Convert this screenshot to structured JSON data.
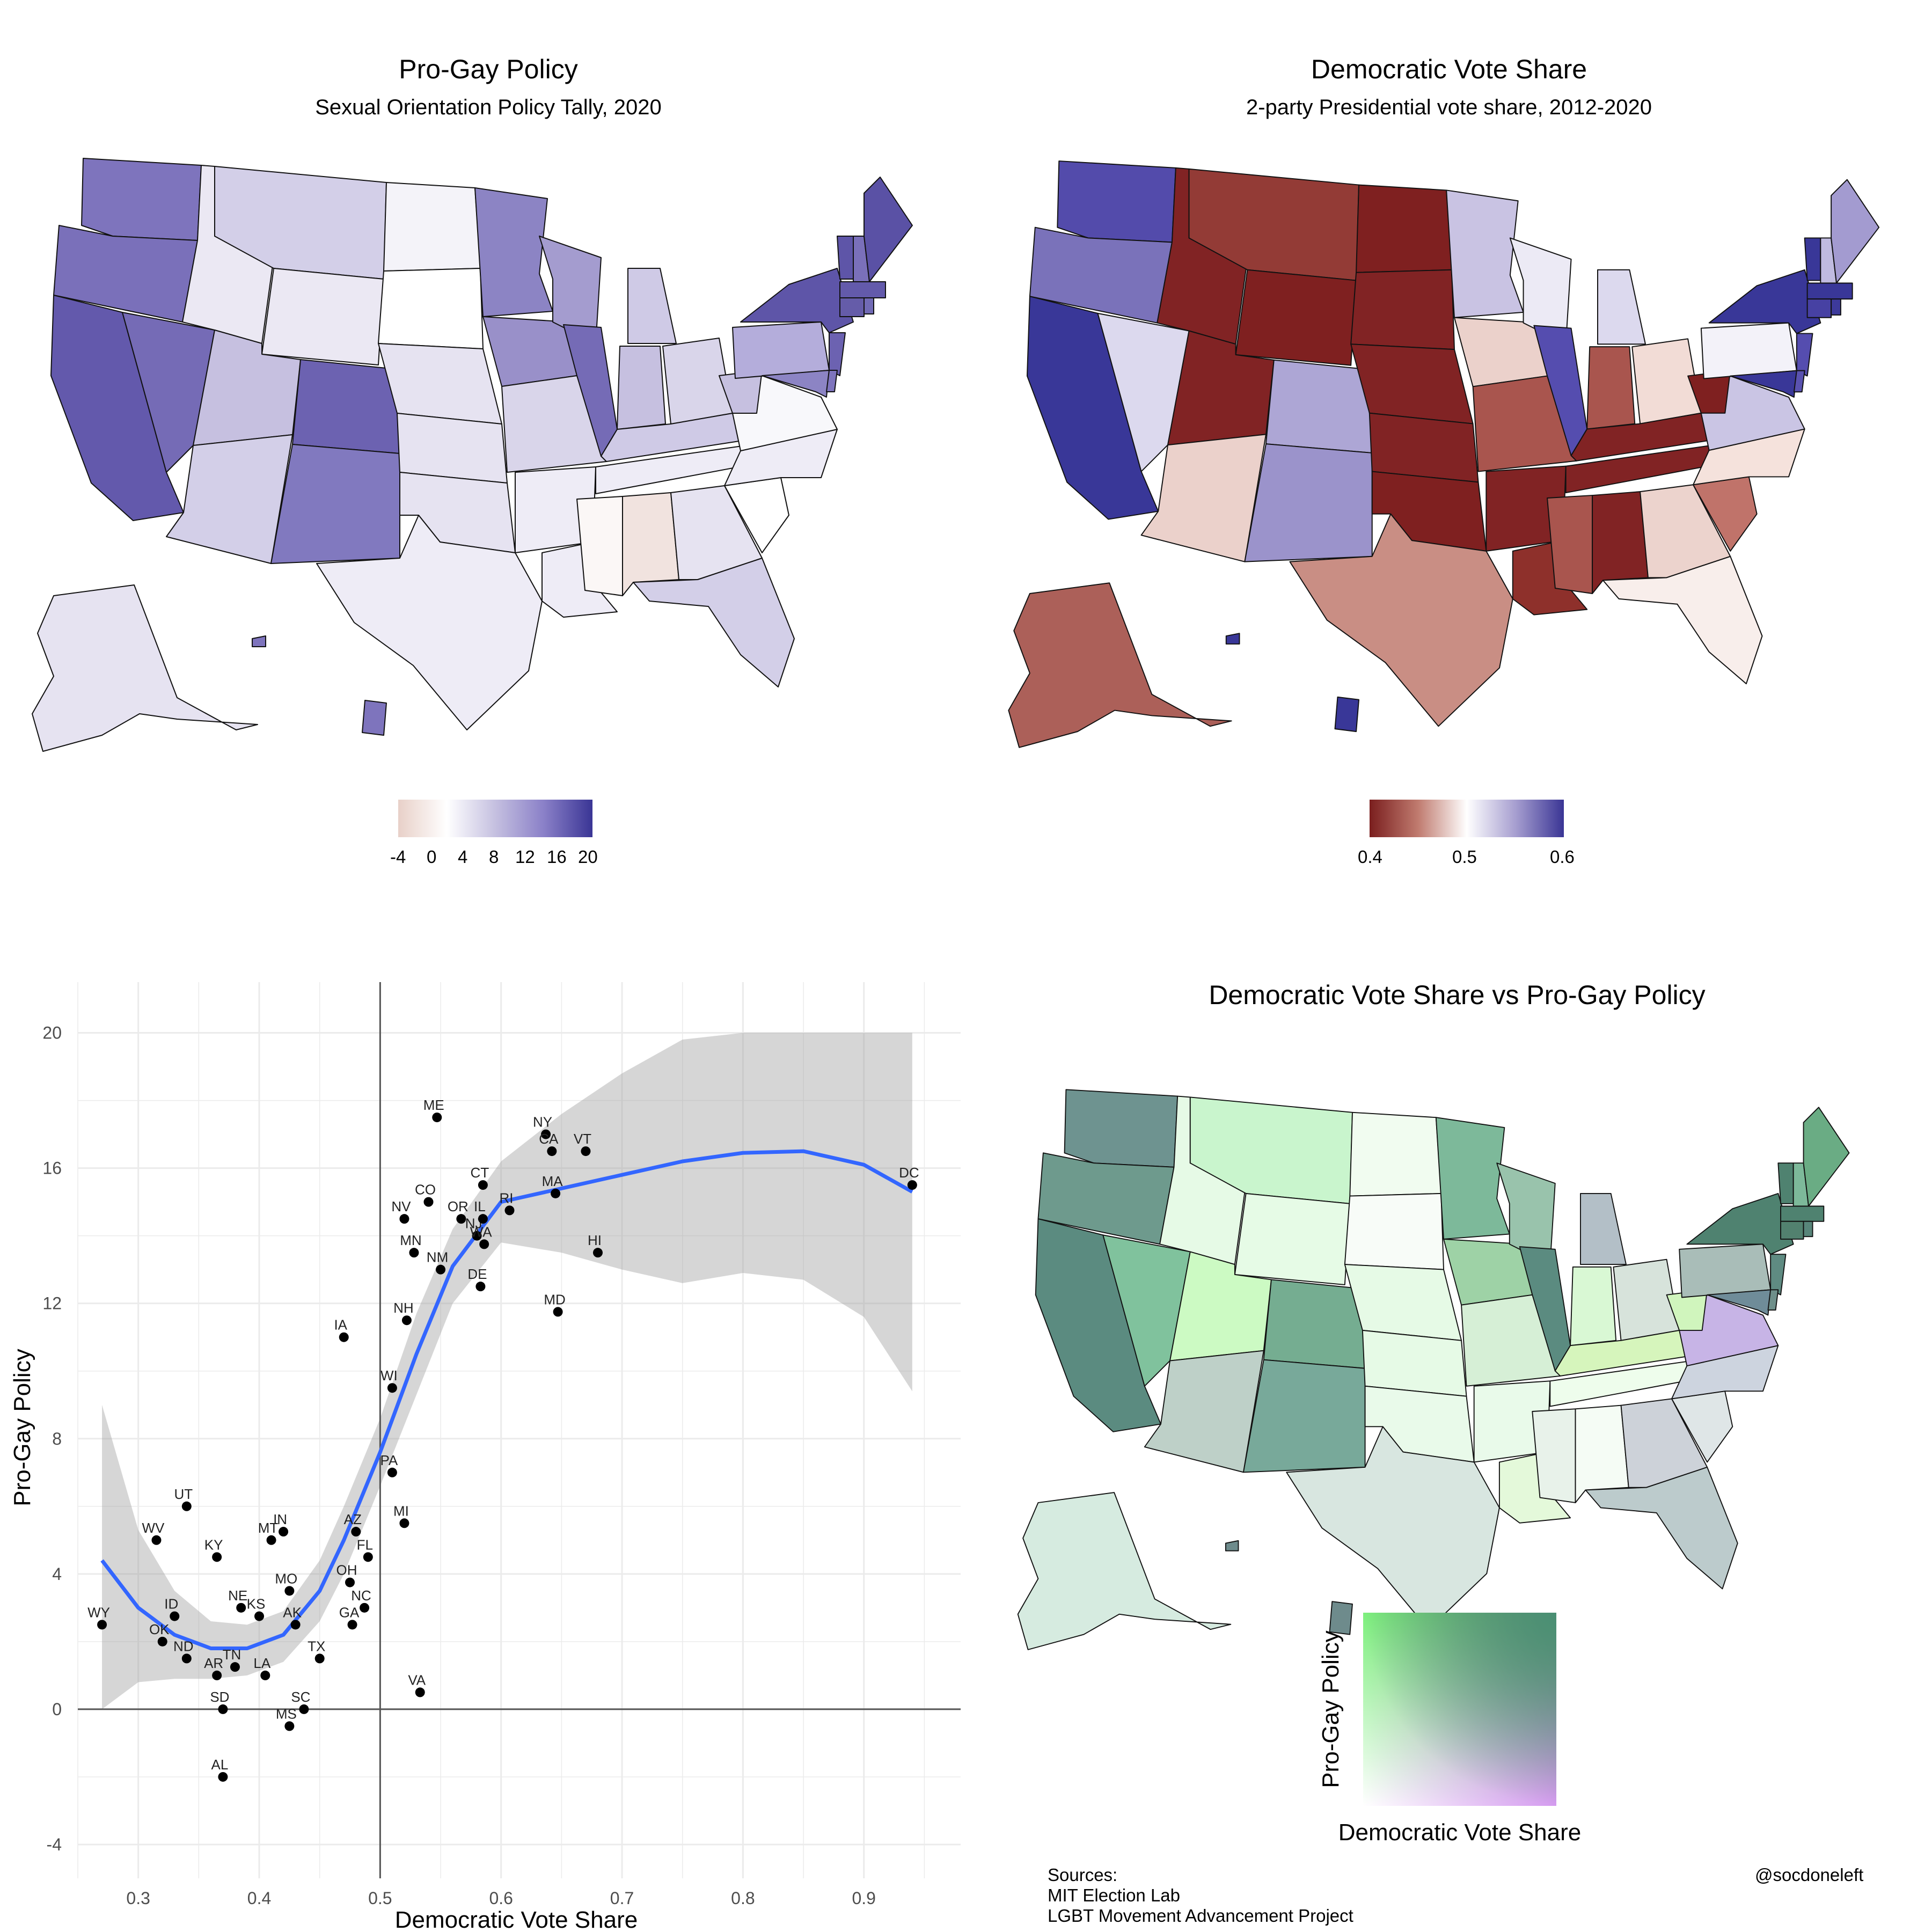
{
  "map_left": {
    "title": "Pro-Gay Policy",
    "subtitle": "Sexual Orientation Policy Tally, 2020",
    "legend_ticks": [
      "-4",
      "0",
      "4",
      "8",
      "12",
      "16",
      "20"
    ],
    "legend_colors": [
      "#e8d0c8",
      "#ffffff",
      "#c5c0e0",
      "#8a80c8",
      "#3a3595"
    ]
  },
  "map_right": {
    "title": "Democratic Vote Share",
    "subtitle": "2-party Presidential vote share, 2012-2020",
    "legend_ticks": [
      "0.4",
      "0.5",
      "0.6"
    ],
    "legend_colors": [
      "#7a1e1e",
      "#c07b6f",
      "#ffffff",
      "#a79fd0",
      "#3a3595"
    ]
  },
  "bivariate": {
    "title": "Democratic Vote Share vs Pro-Gay Policy",
    "legend_ylabel": "Pro-Gay Policy",
    "legend_xlabel": "Democratic Vote Share",
    "colors": {
      "low_low": "#ffffff",
      "high_policy_low_vote": "#7df07d",
      "low_policy_high_vote": "#d59bf0",
      "high_high": "#4a8f73"
    }
  },
  "chart_data": {
    "type": "scatter",
    "xlabel": "Democratic Vote Share",
    "ylabel": "Pro-Gay Policy",
    "xlim": [
      0.25,
      0.98
    ],
    "ylim": [
      -5,
      21.5
    ],
    "xticks": [
      "0.3",
      "0.4",
      "0.5",
      "0.6",
      "0.7",
      "0.8",
      "0.9"
    ],
    "yticks": [
      "-4",
      "0",
      "4",
      "8",
      "12",
      "16",
      "20"
    ],
    "points": [
      {
        "label": "WY",
        "x": 0.27,
        "y": 2.5
      },
      {
        "label": "ID",
        "x": 0.33,
        "y": 2.75
      },
      {
        "label": "OK",
        "x": 0.32,
        "y": 2.0
      },
      {
        "label": "ND",
        "x": 0.34,
        "y": 1.5
      },
      {
        "label": "UT",
        "x": 0.34,
        "y": 6.0
      },
      {
        "label": "WV",
        "x": 0.315,
        "y": 5.0
      },
      {
        "label": "KY",
        "x": 0.365,
        "y": 4.5
      },
      {
        "label": "AR",
        "x": 0.365,
        "y": 1.0
      },
      {
        "label": "SD",
        "x": 0.37,
        "y": 0.0
      },
      {
        "label": "AL",
        "x": 0.37,
        "y": -2.0
      },
      {
        "label": "TN",
        "x": 0.38,
        "y": 1.25
      },
      {
        "label": "NE",
        "x": 0.385,
        "y": 3.0
      },
      {
        "label": "KS",
        "x": 0.4,
        "y": 2.75
      },
      {
        "label": "MT",
        "x": 0.41,
        "y": 5.0
      },
      {
        "label": "IN",
        "x": 0.42,
        "y": 5.25
      },
      {
        "label": "MO",
        "x": 0.425,
        "y": 3.5
      },
      {
        "label": "AK",
        "x": 0.43,
        "y": 2.5
      },
      {
        "label": "LA",
        "x": 0.405,
        "y": 1.0
      },
      {
        "label": "MS",
        "x": 0.425,
        "y": -0.5
      },
      {
        "label": "SC",
        "x": 0.437,
        "y": 0.0
      },
      {
        "label": "TX",
        "x": 0.45,
        "y": 1.5
      },
      {
        "label": "GA",
        "x": 0.477,
        "y": 2.5
      },
      {
        "label": "NC",
        "x": 0.487,
        "y": 3.0
      },
      {
        "label": "OH",
        "x": 0.475,
        "y": 3.75
      },
      {
        "label": "AZ",
        "x": 0.48,
        "y": 5.25
      },
      {
        "label": "FL",
        "x": 0.49,
        "y": 4.5
      },
      {
        "label": "PA",
        "x": 0.51,
        "y": 7.0
      },
      {
        "label": "MI",
        "x": 0.52,
        "y": 5.5
      },
      {
        "label": "VA",
        "x": 0.533,
        "y": 0.5
      },
      {
        "label": "WI",
        "x": 0.51,
        "y": 9.5
      },
      {
        "label": "IA",
        "x": 0.47,
        "y": 11.0
      },
      {
        "label": "NH",
        "x": 0.522,
        "y": 11.5
      },
      {
        "label": "ME",
        "x": 0.547,
        "y": 17.5
      },
      {
        "label": "CO",
        "x": 0.54,
        "y": 15.0
      },
      {
        "label": "NV",
        "x": 0.52,
        "y": 14.5
      },
      {
        "label": "MN",
        "x": 0.528,
        "y": 13.5
      },
      {
        "label": "NM",
        "x": 0.55,
        "y": 13.0
      },
      {
        "label": "OR",
        "x": 0.567,
        "y": 14.5
      },
      {
        "label": "NJ",
        "x": 0.58,
        "y": 14.0
      },
      {
        "label": "IL",
        "x": 0.585,
        "y": 14.5
      },
      {
        "label": "WA",
        "x": 0.586,
        "y": 13.75
      },
      {
        "label": "RI",
        "x": 0.607,
        "y": 14.75
      },
      {
        "label": "CT",
        "x": 0.585,
        "y": 15.5
      },
      {
        "label": "DE",
        "x": 0.583,
        "y": 12.5
      },
      {
        "label": "NY",
        "x": 0.637,
        "y": 17.0
      },
      {
        "label": "CA",
        "x": 0.642,
        "y": 16.5
      },
      {
        "label": "VT",
        "x": 0.67,
        "y": 16.5
      },
      {
        "label": "MA",
        "x": 0.645,
        "y": 15.25
      },
      {
        "label": "MD",
        "x": 0.647,
        "y": 11.75
      },
      {
        "label": "HI",
        "x": 0.68,
        "y": 13.5
      },
      {
        "label": "DC",
        "x": 0.94,
        "y": 15.5
      }
    ],
    "smooth": {
      "x": [
        0.27,
        0.3,
        0.33,
        0.36,
        0.39,
        0.42,
        0.45,
        0.47,
        0.5,
        0.53,
        0.56,
        0.6,
        0.65,
        0.7,
        0.75,
        0.8,
        0.85,
        0.9,
        0.94
      ],
      "y": [
        4.4,
        3.0,
        2.2,
        1.8,
        1.8,
        2.2,
        3.5,
        5.0,
        7.6,
        10.5,
        13.1,
        15.0,
        15.4,
        15.8,
        16.2,
        16.45,
        16.5,
        16.1,
        15.3
      ],
      "upper": [
        9.0,
        5.3,
        3.5,
        2.6,
        2.5,
        2.9,
        4.4,
        6.0,
        8.6,
        11.7,
        14.2,
        16.2,
        17.6,
        18.8,
        19.8,
        20.0,
        20.0,
        20.0,
        20.0
      ],
      "lower": [
        0.0,
        0.8,
        0.9,
        0.9,
        1.0,
        1.4,
        2.6,
        4.0,
        6.6,
        9.3,
        12.0,
        13.8,
        13.5,
        13.0,
        12.6,
        12.9,
        12.7,
        11.6,
        9.4
      ]
    }
  },
  "footer": {
    "sources_heading": "Sources:",
    "source1": "MIT Election Lab",
    "source2": "LGBT Movement Advancement Project",
    "handle": "@socdoneleft"
  }
}
